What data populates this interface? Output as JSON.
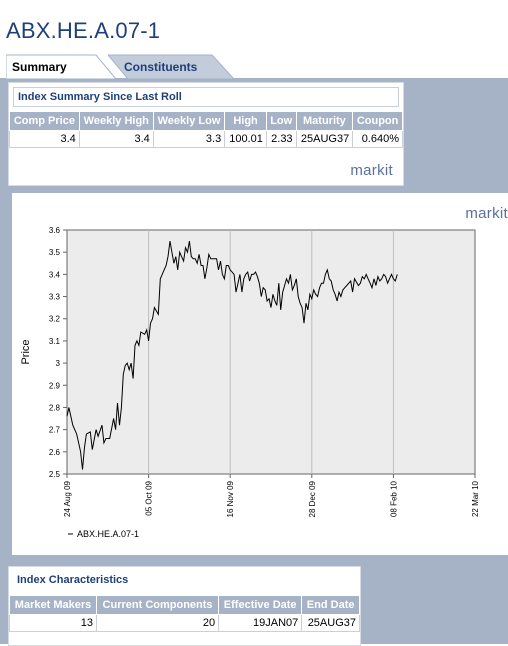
{
  "page": {
    "title": "ABX.HE.A.07-1"
  },
  "tabs": [
    {
      "label": "Summary",
      "active": true
    },
    {
      "label": "Constituents",
      "active": false
    }
  ],
  "summary": {
    "title": "Index Summary Since Last Roll",
    "headers": [
      "Comp Price",
      "Weekly High",
      "Weekly Low",
      "High",
      "Low",
      "Maturity",
      "Coupon"
    ],
    "row": [
      "3.4",
      "3.4",
      "3.3",
      "100.01",
      "2.33",
      "25AUG37",
      "0.640%"
    ],
    "logo": "markit"
  },
  "chart_logo": "markit",
  "characteristics": {
    "title": "Index Characteristics",
    "headers": [
      "Market Makers",
      "Current Components",
      "Effective Date",
      "End Date"
    ],
    "row": [
      "13",
      "20",
      "19JAN07",
      "25AUG37"
    ]
  },
  "chart_data": {
    "type": "line",
    "ylabel": "Price",
    "ylim": [
      2.5,
      3.6
    ],
    "yticks": [
      "2.5",
      "2.6",
      "2.7",
      "2.8",
      "2.9",
      "3",
      "3.1",
      "3.2",
      "3.3",
      "3.4",
      "3.5",
      "3.6"
    ],
    "xticks": [
      "24 Aug 09",
      "05 Oct 09",
      "16 Nov 09",
      "28 Dec 09",
      "08 Feb 10",
      "22 Mar 10"
    ],
    "grid": true,
    "legend": "bottom-left",
    "series": [
      {
        "name": "ABX.HE.A.07-1",
        "x": [
          0,
          1,
          3,
          5,
          7,
          8,
          9,
          10,
          12,
          13,
          15,
          16,
          18,
          19,
          20,
          22,
          24,
          25,
          26,
          27,
          28,
          29,
          30,
          31,
          32,
          33,
          34,
          35,
          36,
          37,
          38,
          40,
          41,
          42,
          43,
          44,
          45,
          47,
          48,
          49,
          50,
          51,
          52,
          53,
          54,
          55,
          56,
          57,
          58,
          59,
          60,
          61,
          62,
          63,
          64,
          65,
          66,
          67,
          68,
          69,
          70,
          71,
          72,
          73,
          74,
          75,
          77,
          78,
          79,
          80,
          81,
          82,
          83,
          84,
          85,
          86,
          87,
          88,
          89,
          90,
          91,
          92,
          93,
          94,
          95,
          96,
          97,
          98,
          99,
          100,
          101,
          102,
          103,
          104,
          105,
          106,
          107,
          108,
          109,
          110,
          111,
          112,
          113,
          114,
          115,
          116,
          117,
          118,
          119,
          120,
          121,
          122,
          123,
          124,
          125,
          126,
          127,
          128,
          129,
          130,
          131,
          132,
          133,
          134,
          135,
          136,
          137,
          138,
          139,
          140,
          141,
          142,
          143,
          144,
          145,
          146,
          147,
          148,
          150,
          151,
          152,
          153,
          154,
          155,
          156,
          157,
          158,
          159,
          160,
          161,
          162,
          163,
          164,
          165,
          166,
          167,
          168,
          169,
          170
        ],
        "values": [
          2.76,
          2.8,
          2.72,
          2.68,
          2.6,
          2.52,
          2.62,
          2.68,
          2.69,
          2.61,
          2.7,
          2.67,
          2.72,
          2.64,
          2.66,
          2.66,
          2.75,
          2.7,
          2.82,
          2.72,
          2.8,
          2.95,
          2.99,
          3.0,
          2.97,
          3.0,
          2.93,
          3.08,
          3.1,
          3.08,
          3.14,
          3.13,
          3.15,
          3.1,
          3.18,
          3.2,
          3.25,
          3.22,
          3.38,
          3.4,
          3.42,
          3.44,
          3.48,
          3.55,
          3.5,
          3.45,
          3.48,
          3.42,
          3.5,
          3.48,
          3.46,
          3.52,
          3.5,
          3.55,
          3.48,
          3.47,
          3.47,
          3.45,
          3.49,
          3.44,
          3.44,
          3.38,
          3.43,
          3.49,
          3.47,
          3.47,
          3.47,
          3.42,
          3.46,
          3.4,
          3.38,
          3.44,
          3.44,
          3.42,
          3.41,
          3.4,
          3.32,
          3.36,
          3.4,
          3.32,
          3.38,
          3.4,
          3.41,
          3.37,
          3.4,
          3.4,
          3.41,
          3.39,
          3.36,
          3.3,
          3.34,
          3.33,
          3.28,
          3.29,
          3.25,
          3.31,
          3.28,
          3.26,
          3.36,
          3.24,
          3.32,
          3.35,
          3.38,
          3.36,
          3.4,
          3.33,
          3.35,
          3.38,
          3.3,
          3.27,
          3.25,
          3.18,
          3.27,
          3.24,
          3.31,
          3.29,
          3.33,
          3.31,
          3.3,
          3.34,
          3.36,
          3.36,
          3.4,
          3.42,
          3.38,
          3.37,
          3.33,
          3.31,
          3.28,
          3.32,
          3.3,
          3.33,
          3.34,
          3.35,
          3.36,
          3.37,
          3.32,
          3.38,
          3.35,
          3.36,
          3.39,
          3.38,
          3.4,
          3.38,
          3.36,
          3.34,
          3.38,
          3.35,
          3.39,
          3.37,
          3.38,
          3.4,
          3.39,
          3.36,
          3.38,
          3.4,
          3.38,
          3.37,
          3.4
        ],
        "x_domain": [
          0,
          210
        ]
      }
    ]
  }
}
